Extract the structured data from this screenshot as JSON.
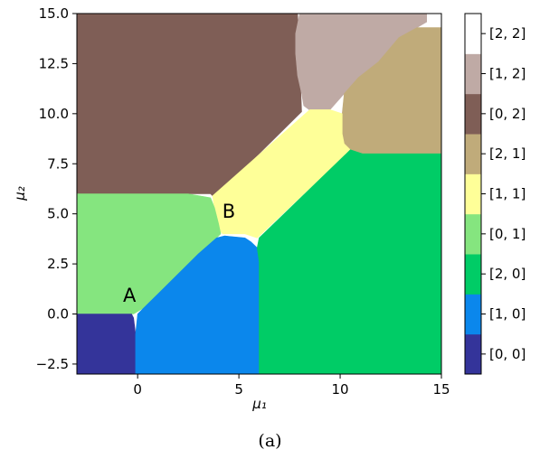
{
  "chart_data": {
    "type": "heatmap",
    "xlabel": "μ₁",
    "ylabel": "μ₂",
    "xlim": [
      -3,
      15
    ],
    "ylim": [
      -3,
      15
    ],
    "x_ticks": [
      0,
      5,
      10,
      15
    ],
    "y_ticks": [
      -2.5,
      0.0,
      2.5,
      5.0,
      7.5,
      10.0,
      12.5,
      15.0
    ],
    "y_tick_labels": [
      "−2.5",
      "0.0",
      "2.5",
      "5.0",
      "7.5",
      "10.0",
      "12.5",
      "15.0"
    ],
    "x_tick_labels": [
      "0",
      "5",
      "10",
      "15"
    ],
    "grid": false,
    "colorbar_position": "right",
    "categories": [
      {
        "label": "[0, 0]",
        "color": "#34349a"
      },
      {
        "label": "[1, 0]",
        "color": "#0b87ec"
      },
      {
        "label": "[2, 0]",
        "color": "#00cc66"
      },
      {
        "label": "[0, 1]",
        "color": "#85e57f"
      },
      {
        "label": "[1, 1]",
        "color": "#feff98"
      },
      {
        "label": "[2, 1]",
        "color": "#c0ab7a"
      },
      {
        "label": "[0, 2]",
        "color": "#7f5e56"
      },
      {
        "label": "[1, 2]",
        "color": "#bfaaa5"
      },
      {
        "label": "[2, 2]",
        "color": "#ffffff"
      }
    ],
    "regions": [
      {
        "label": "[0, 2]",
        "points": [
          [
            -3,
            15
          ],
          [
            7.9,
            15
          ],
          [
            8.1,
            10.1
          ],
          [
            3.8,
            5.8
          ],
          [
            3.6,
            6.0
          ],
          [
            -3,
            6.0
          ]
        ]
      },
      {
        "label": "[1, 2]",
        "points": [
          [
            8.0,
            15
          ],
          [
            14.3,
            15
          ],
          [
            14.3,
            14.6
          ],
          [
            13.8,
            14.3
          ],
          [
            12.9,
            13.8
          ],
          [
            11.9,
            12.6
          ],
          [
            10.9,
            11.8
          ],
          [
            10.2,
            11.0
          ],
          [
            9.5,
            10.2
          ],
          [
            8.6,
            10.1
          ],
          [
            8.2,
            10.4
          ],
          [
            8.1,
            11.0
          ],
          [
            7.9,
            11.9
          ],
          [
            7.8,
            13.0
          ],
          [
            7.8,
            14.0
          ]
        ]
      },
      {
        "label": "[2, 2]",
        "points": [
          [
            14.3,
            15
          ],
          [
            15,
            15
          ],
          [
            15,
            14.1
          ],
          [
            14.3,
            14.1
          ]
        ]
      },
      {
        "label": "[2, 1]",
        "points": [
          [
            10.2,
            11.0
          ],
          [
            10.9,
            11.8
          ],
          [
            11.9,
            12.6
          ],
          [
            12.9,
            13.8
          ],
          [
            13.8,
            14.3
          ],
          [
            15,
            14.3
          ],
          [
            15,
            8.0
          ],
          [
            11.1,
            8.0
          ],
          [
            10.5,
            8.2
          ],
          [
            10.2,
            8.5
          ],
          [
            10.1,
            9.0
          ],
          [
            10.1,
            10.0
          ]
        ]
      },
      {
        "label": "[1, 1]",
        "points": [
          [
            3.7,
            5.9
          ],
          [
            8.5,
            10.2
          ],
          [
            9.5,
            10.2
          ],
          [
            10.1,
            10.0
          ],
          [
            10.1,
            9.0
          ],
          [
            10.2,
            8.5
          ],
          [
            10.5,
            8.2
          ],
          [
            10.3,
            8.0
          ],
          [
            5.9,
            3.8
          ],
          [
            5.3,
            4.0
          ],
          [
            4.2,
            4.0
          ],
          [
            4.0,
            4.2
          ],
          [
            3.9,
            4.8
          ],
          [
            3.8,
            5.2
          ]
        ]
      },
      {
        "label": "[0, 1]",
        "points": [
          [
            -3,
            6.0
          ],
          [
            2.5,
            6.0
          ],
          [
            3.6,
            5.8
          ],
          [
            3.8,
            5.3
          ],
          [
            4.0,
            4.5
          ],
          [
            4.1,
            4.0
          ],
          [
            3.9,
            3.8
          ],
          [
            3.0,
            3.0
          ],
          [
            2.0,
            2.0
          ],
          [
            1.0,
            1.0
          ],
          [
            0.3,
            0.3
          ],
          [
            -0.2,
            0.0
          ],
          [
            -0.3,
            0.0
          ],
          [
            -3,
            0.0
          ]
        ]
      },
      {
        "label": "[0, 0]",
        "points": [
          [
            -3,
            0.0
          ],
          [
            -0.3,
            0.0
          ],
          [
            -0.2,
            -0.2
          ],
          [
            -0.1,
            -1.0
          ],
          [
            -0.1,
            -3
          ],
          [
            -3,
            -3
          ]
        ]
      },
      {
        "label": "[1, 0]",
        "points": [
          [
            -0.1,
            -3
          ],
          [
            6.0,
            -3
          ],
          [
            6.0,
            2.6
          ],
          [
            5.9,
            3.3
          ],
          [
            5.6,
            3.6
          ],
          [
            5.3,
            3.8
          ],
          [
            4.3,
            3.9
          ],
          [
            3.9,
            3.8
          ],
          [
            3.0,
            3.0
          ],
          [
            2.0,
            2.0
          ],
          [
            1.0,
            1.0
          ],
          [
            0.3,
            0.3
          ],
          [
            0.0,
            0.0
          ],
          [
            -0.1,
            -1.0
          ]
        ]
      },
      {
        "label": "[2, 0]",
        "points": [
          [
            6.0,
            -3
          ],
          [
            15,
            -3
          ],
          [
            15,
            8.0
          ],
          [
            11.1,
            8.0
          ],
          [
            10.5,
            8.2
          ],
          [
            10.3,
            8.0
          ],
          [
            6.0,
            3.8
          ],
          [
            5.9,
            3.3
          ],
          [
            6.0,
            2.6
          ]
        ]
      }
    ],
    "annotations": [
      {
        "text": "A",
        "x": -0.4,
        "y": 0.6
      },
      {
        "text": "B",
        "x": 4.5,
        "y": 4.8
      }
    ]
  },
  "caption": "(a)"
}
